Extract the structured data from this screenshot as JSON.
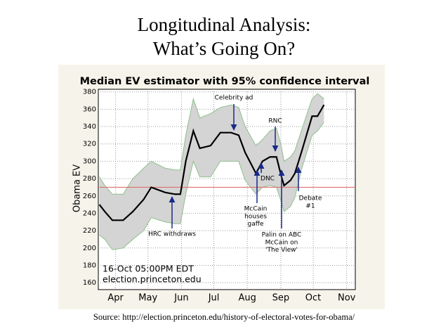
{
  "slide": {
    "title_lines": [
      "Longitudinal Analysis:",
      "What’s Going On?"
    ],
    "source": "Source:  http://election.princeton.edu/history-of-electoral-votes-for-obama/"
  },
  "chart_data": {
    "type": "line",
    "title": "Median EV estimator with 95% confidence interval",
    "y_label": "Obama EV",
    "x": [
      77,
      82,
      89,
      99,
      108,
      118,
      125,
      138,
      147,
      152,
      157,
      164,
      170,
      180,
      189,
      199,
      206,
      212,
      222,
      228,
      235,
      241,
      245,
      248,
      254,
      258,
      264,
      274,
      279,
      285
    ],
    "series": [
      {
        "color": "#000000",
        "values": [
          250,
          242,
          232,
          232,
          242,
          256,
          270,
          264,
          262,
          262,
          300,
          335,
          315,
          318,
          333,
          333,
          330,
          310,
          286,
          300,
          305,
          305,
          285,
          272,
          278,
          286,
          310,
          352,
          352,
          365
        ]
      }
    ],
    "band": {
      "color": "#d4d4d4",
      "edge_color": "#8fc08f",
      "upper": [
        282,
        272,
        262,
        262,
        280,
        292,
        300,
        292,
        290,
        290,
        330,
        372,
        350,
        355,
        362,
        365,
        362,
        340,
        318,
        325,
        335,
        338,
        320,
        300,
        305,
        312,
        335,
        372,
        378,
        372
      ],
      "lower": [
        215,
        210,
        198,
        200,
        210,
        220,
        235,
        230,
        228,
        228,
        262,
        300,
        282,
        282,
        300,
        300,
        300,
        278,
        262,
        270,
        272,
        270,
        255,
        242,
        248,
        258,
        290,
        330,
        335,
        345
      ]
    },
    "reference_line": {
      "value": 270,
      "color": "#e07070"
    },
    "xlim": [
      76,
      314
    ],
    "ylim": [
      152,
      383
    ],
    "xticks": [
      {
        "value": 92,
        "label": "Apr"
      },
      {
        "value": 122,
        "label": "May"
      },
      {
        "value": 153,
        "label": "Jun"
      },
      {
        "value": 183,
        "label": "Jul"
      },
      {
        "value": 214,
        "label": "Aug"
      },
      {
        "value": 245,
        "label": "Sep"
      },
      {
        "value": 275,
        "label": "Oct"
      },
      {
        "value": 306,
        "label": "Nov"
      }
    ],
    "yticks": [
      160,
      180,
      200,
      220,
      240,
      260,
      280,
      300,
      320,
      340,
      360,
      380
    ],
    "grid": true,
    "annotations": [
      {
        "lines": [
          "Celebrity ad"
        ]
      },
      {
        "lines": [
          "RNC"
        ]
      },
      {
        "lines": [
          "DNC"
        ]
      },
      {
        "lines": [
          "Debate",
          "#1"
        ]
      },
      {
        "lines": [
          "McCain",
          "houses",
          "gaffe"
        ]
      },
      {
        "lines": [
          "HRC withdraws"
        ]
      },
      {
        "lines": [
          "Palin on ABC",
          "McCain on",
          "'The View'"
        ]
      },
      {
        "lines": [
          "16-Oct 05:00PM EDT",
          "election.princeton.edu"
        ]
      }
    ]
  }
}
